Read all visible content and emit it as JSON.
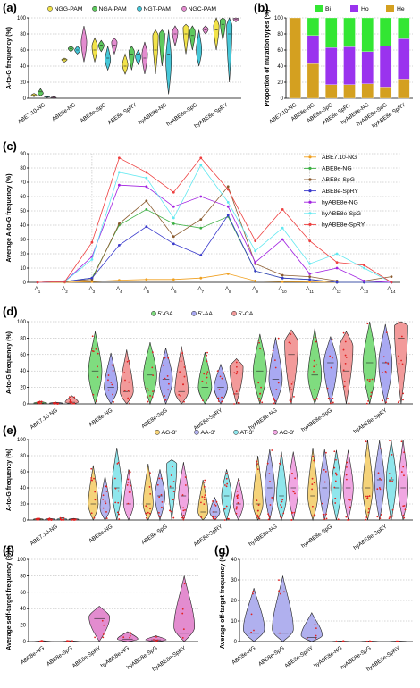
{
  "colors": {
    "ngg": "#f2e34a",
    "nga": "#5ec95e",
    "ngt": "#46c7d8",
    "ngc": "#e38ccf",
    "bi": "#33e633",
    "ho": "#9a33ee",
    "he": "#d4a020",
    "abe7": "#f0a020",
    "abe8ng": "#3cb043",
    "abe8spg": "#8a5a2e",
    "abe8spry": "#3a3acc",
    "hyng": "#a020e0",
    "hyspg": "#60e8f0",
    "hyspry": "#ee4040",
    "ga": "#7fdc7f",
    "aa": "#a9a9f2",
    "ca": "#f29a9a",
    "ag": "#f5d37a",
    "aa3": "#b4b4f0",
    "at": "#8fe6ec",
    "ac": "#f0a6e2",
    "dot": "#e02020"
  },
  "chart_data": [
    {
      "id": "a",
      "panel_label": "(a)",
      "type": "violin",
      "ylabel": "A-to-G frequency (%)",
      "ylim": [
        0,
        100
      ],
      "yticks": [
        0,
        20,
        40,
        60,
        80,
        100
      ],
      "categories": [
        "ABE7.10-NG",
        "ABE8e-NG",
        "ABE8e-SpG",
        "ABE8e-SpRY",
        "hyABE8e-NG",
        "hyABE8e-SpG",
        "hyABE8e-SpRY"
      ],
      "legend": [
        "NGG-PAM",
        "NGA-PAM",
        "NGT-PAM",
        "NGC-PAM"
      ],
      "groups": [
        [
          [
            2,
            4,
            6,
            4
          ],
          [
            3,
            8,
            12,
            6
          ],
          [
            1,
            2,
            3,
            2
          ],
          [
            0,
            1,
            2,
            1
          ]
        ],
        [
          [
            45,
            48,
            50,
            48
          ],
          [
            58,
            62,
            65,
            62
          ],
          [
            55,
            60,
            65,
            60
          ],
          [
            45,
            75,
            90,
            70
          ]
        ],
        [
          [
            45,
            60,
            75,
            65
          ],
          [
            58,
            66,
            72,
            66
          ],
          [
            35,
            50,
            65,
            48
          ],
          [
            55,
            66,
            75,
            70
          ]
        ],
        [
          [
            30,
            40,
            55,
            42
          ],
          [
            35,
            55,
            65,
            58
          ],
          [
            42,
            55,
            60,
            52
          ],
          [
            30,
            50,
            70,
            55
          ]
        ],
        [
          [
            30,
            60,
            85,
            78
          ],
          [
            40,
            75,
            85,
            80
          ],
          [
            5,
            55,
            85,
            48
          ],
          [
            65,
            80,
            90,
            83
          ]
        ],
        [
          [
            55,
            80,
            92,
            88
          ],
          [
            60,
            78,
            90,
            83
          ],
          [
            40,
            65,
            85,
            60
          ],
          [
            80,
            85,
            90,
            86
          ]
        ],
        [
          [
            60,
            85,
            100,
            90
          ],
          [
            72,
            92,
            100,
            97
          ],
          [
            20,
            80,
            100,
            90
          ],
          [
            95,
            98,
            100,
            99
          ]
        ]
      ]
    },
    {
      "id": "b",
      "panel_label": "(b)",
      "type": "stacked-bar",
      "ylabel": "Proportion of mutation types (%)",
      "ylim": [
        0,
        100
      ],
      "yticks": [
        0,
        20,
        40,
        60,
        80,
        100
      ],
      "categories": [
        "ABE7.10-NG",
        "ABE8e-NG",
        "ABE8e-SpG",
        "ABE8e-SpRY",
        "hyABE8e-NG",
        "hyABE8e-SpG",
        "hyABE8e-SpRY"
      ],
      "legend": [
        "Bi",
        "Ho",
        "He"
      ],
      "series": [
        {
          "name": "He",
          "values": [
            100,
            43,
            17,
            17,
            18,
            14,
            24
          ]
        },
        {
          "name": "Ho",
          "values": [
            0,
            35,
            46,
            47,
            40,
            51,
            50
          ]
        },
        {
          "name": "Bi",
          "values": [
            0,
            22,
            37,
            36,
            42,
            35,
            26
          ]
        }
      ]
    },
    {
      "id": "c",
      "panel_label": "(c)",
      "type": "line",
      "ylabel": "Average A-to-G frequency (%)",
      "ylim": [
        0,
        90
      ],
      "yticks": [
        0,
        10,
        20,
        30,
        40,
        50,
        60,
        70,
        80,
        90
      ],
      "x": [
        "A1",
        "A2",
        "A3",
        "A4",
        "A5",
        "A6",
        "A7",
        "A8",
        "A9",
        "A10",
        "A11",
        "A12",
        "A13",
        "A14"
      ],
      "series": [
        {
          "name": "ABE7.10-NG",
          "values": [
            0,
            0,
            0.5,
            1.5,
            2,
            2,
            3,
            6,
            1,
            0.5,
            0.3,
            0,
            0,
            0
          ]
        },
        {
          "name": "ABE8e-NG",
          "values": [
            0,
            0.5,
            3,
            40,
            51,
            41,
            38,
            46,
            8,
            3,
            2,
            0,
            0,
            0
          ]
        },
        {
          "name": "ABE8e-SpG",
          "values": [
            0,
            0.5,
            2,
            41,
            57,
            32,
            44,
            67,
            13,
            5,
            4,
            1,
            1,
            4
          ]
        },
        {
          "name": "ABE8e-SpRY",
          "values": [
            0,
            0.5,
            3,
            26,
            39,
            27,
            19,
            47,
            8,
            3,
            2,
            0,
            0,
            0
          ]
        },
        {
          "name": "hyABE8e-NG",
          "values": [
            0,
            0.5,
            18,
            68,
            67,
            53,
            60,
            53,
            14,
            30,
            6,
            10,
            1,
            0
          ]
        },
        {
          "name": "hyABE8e-SpG",
          "values": [
            0,
            0.5,
            16,
            77,
            73,
            45,
            82,
            56,
            22,
            38,
            13,
            20,
            10,
            0
          ]
        },
        {
          "name": "hyABE8e-SpRY",
          "values": [
            0,
            0.5,
            28,
            87,
            77,
            63,
            87,
            65,
            29,
            51,
            29,
            14,
            12,
            0
          ]
        }
      ]
    },
    {
      "id": "d",
      "panel_label": "(d)",
      "type": "violin",
      "ylabel": "A-to-G frequency (%)",
      "ylim": [
        0,
        100
      ],
      "yticks": [
        0,
        20,
        40,
        60,
        80,
        100
      ],
      "categories": [
        "ABE7.10-NG",
        "ABE8e-NG",
        "ABE8e-SpG",
        "ABE8e-SpRY",
        "hyABE8e-NG",
        "hyABE8e-SpG",
        "hyABE8e-SpRY"
      ],
      "legend": [
        "5'-GA",
        "5'-AA",
        "5'-CA"
      ],
      "groups": [
        [
          [
            0,
            1,
            3,
            1
          ],
          [
            0,
            1,
            2,
            1
          ],
          [
            0,
            2,
            10,
            2
          ]
        ],
        [
          [
            0,
            40,
            88,
            40
          ],
          [
            0,
            20,
            62,
            20
          ],
          [
            0,
            15,
            66,
            15
          ]
        ],
        [
          [
            0,
            35,
            75,
            35
          ],
          [
            0,
            30,
            68,
            30
          ],
          [
            0,
            15,
            70,
            15
          ]
        ],
        [
          [
            0,
            20,
            63,
            20
          ],
          [
            0,
            20,
            48,
            20
          ],
          [
            0,
            12,
            55,
            45
          ]
        ],
        [
          [
            0,
            40,
            85,
            40
          ],
          [
            0,
            30,
            81,
            30
          ],
          [
            0,
            60,
            90,
            75
          ]
        ],
        [
          [
            0,
            35,
            92,
            35
          ],
          [
            0,
            50,
            82,
            50
          ],
          [
            0,
            40,
            88,
            70
          ]
        ],
        [
          [
            0,
            50,
            100,
            50
          ],
          [
            0,
            50,
            97,
            50
          ],
          [
            0,
            80,
            100,
            95
          ]
        ]
      ]
    },
    {
      "id": "e",
      "panel_label": "(e)",
      "type": "violin",
      "ylabel": "A-to-G frequency (%)",
      "ylim": [
        0,
        100
      ],
      "yticks": [
        0,
        20,
        40,
        60,
        80,
        100
      ],
      "categories": [
        "ABE7.10-NG",
        "ABE8e-NG",
        "ABE8e-SpG",
        "ABE8e-SpRY",
        "hyABE8e-NG",
        "hyABE8e-SpG",
        "hyABE8e-SpRY"
      ],
      "legend": [
        "AG-3'",
        "AA-3'",
        "AT-3'",
        "AC-3'"
      ],
      "groups": [
        [
          [
            0,
            1,
            2,
            1
          ],
          [
            0,
            1,
            2,
            1
          ],
          [
            0,
            1,
            3,
            1
          ],
          [
            0,
            1,
            2,
            1
          ]
        ],
        [
          [
            0,
            20,
            68,
            20
          ],
          [
            0,
            15,
            55,
            15
          ],
          [
            0,
            40,
            90,
            40
          ],
          [
            0,
            20,
            63,
            20
          ]
        ],
        [
          [
            0,
            20,
            70,
            20
          ],
          [
            0,
            30,
            63,
            30
          ],
          [
            0,
            40,
            75,
            70
          ],
          [
            0,
            30,
            72,
            30
          ]
        ],
        [
          [
            0,
            10,
            50,
            10
          ],
          [
            0,
            10,
            28,
            10
          ],
          [
            0,
            30,
            63,
            30
          ],
          [
            0,
            20,
            52,
            20
          ]
        ],
        [
          [
            0,
            20,
            80,
            20
          ],
          [
            0,
            40,
            88,
            40
          ],
          [
            0,
            30,
            85,
            30
          ],
          [
            0,
            40,
            85,
            40
          ]
        ],
        [
          [
            0,
            30,
            90,
            30
          ],
          [
            0,
            40,
            88,
            40
          ],
          [
            0,
            40,
            87,
            40
          ],
          [
            0,
            40,
            87,
            40
          ]
        ],
        [
          [
            0,
            40,
            100,
            40
          ],
          [
            0,
            50,
            99,
            50
          ],
          [
            0,
            50,
            99,
            50
          ],
          [
            0,
            40,
            100,
            40
          ]
        ]
      ]
    },
    {
      "id": "f",
      "panel_label": "(f)",
      "type": "violin",
      "ylabel": "Average self-target frequency (%)",
      "ylim": [
        0,
        100
      ],
      "yticks": [
        0,
        20,
        40,
        60,
        80,
        100
      ],
      "categories": [
        "ABE8e-NG",
        "ABE8e-SpG",
        "ABE8e-SpRY",
        "hyABE8e-NG",
        "hyABE8e-SpG",
        "hyABE8e-SpRY"
      ],
      "groups": [
        [
          [
            0,
            0,
            1,
            0
          ]
        ],
        [
          [
            0,
            0,
            1,
            0
          ]
        ],
        [
          [
            0,
            28,
            43,
            30
          ]
        ],
        [
          [
            0,
            3,
            12,
            3
          ]
        ],
        [
          [
            0,
            2,
            7,
            2
          ]
        ],
        [
          [
            0,
            10,
            80,
            18
          ]
        ]
      ]
    },
    {
      "id": "g",
      "panel_label": "(g)",
      "type": "violin",
      "ylabel": "Average off-target frequency (%)",
      "ylim": [
        0,
        40
      ],
      "yticks": [
        0,
        10,
        20,
        30,
        40
      ],
      "categories": [
        "ABE8e-NG",
        "ABE8e-SpG",
        "ABE8e-SpRY",
        "hyABE8e-NG",
        "hyABE8e-SpG",
        "hyABE8e-SpRY"
      ],
      "groups": [
        [
          [
            0,
            4,
            26,
            6
          ]
        ],
        [
          [
            0,
            4,
            32,
            6
          ]
        ],
        [
          [
            0,
            2,
            14,
            3
          ]
        ],
        [
          [
            0,
            0,
            0.3,
            0
          ]
        ],
        [
          [
            0,
            0,
            0.3,
            0
          ]
        ],
        [
          [
            0,
            0,
            0.3,
            0
          ]
        ]
      ]
    }
  ]
}
